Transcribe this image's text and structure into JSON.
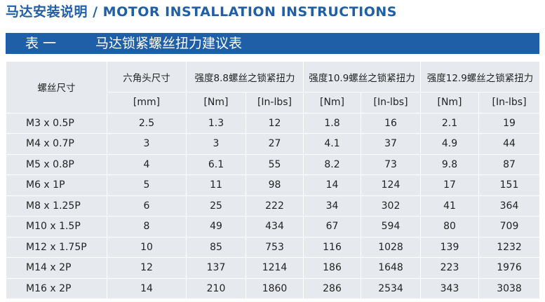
{
  "header": {
    "title": "马达安装说明 / MOTOR INSTALLATION INSTRUCTIONS"
  },
  "banner": {
    "label": "表 一",
    "title": "马达锁紧螺丝扭力建议表"
  },
  "table": {
    "size_header": "螺丝尺寸",
    "hex_header": "六角头尺寸",
    "hex_unit": "[mm]",
    "groups": [
      {
        "name": "强度8.8螺丝之锁紧扭力",
        "units": [
          "[Nm]",
          "[In-lbs]"
        ]
      },
      {
        "name": "强度10.9螺丝之锁紧扭力",
        "units": [
          "[Nm]",
          "[In-lbs]"
        ]
      },
      {
        "name": "强度12.9螺丝之锁紧扭力",
        "units": [
          "[Nm]",
          "[In-lbs]"
        ]
      }
    ],
    "rows": [
      [
        "M3 x 0.5P",
        2.5,
        1.3,
        12,
        1.8,
        16,
        2.1,
        19
      ],
      [
        "M4 x 0.7P",
        3,
        3,
        27,
        4.1,
        37,
        4.9,
        44
      ],
      [
        "M5 x 0.8P",
        4,
        6.1,
        55,
        8.2,
        73,
        9.8,
        87
      ],
      [
        "M6 x 1P",
        5,
        11,
        98,
        14,
        124,
        17,
        151
      ],
      [
        "M8 x 1.25P",
        6,
        25,
        222,
        34,
        302,
        41,
        364
      ],
      [
        "M10 x 1.5P",
        8,
        49,
        434,
        67,
        594,
        80,
        709
      ],
      [
        "M12 x 1.75P",
        10,
        85,
        753,
        116,
        1028,
        139,
        1232
      ],
      [
        "M14 x 2P",
        12,
        137,
        1214,
        186,
        1648,
        223,
        1976
      ],
      [
        "M16 x 2P",
        14,
        210,
        1860,
        286,
        2534,
        343,
        3038
      ]
    ]
  }
}
